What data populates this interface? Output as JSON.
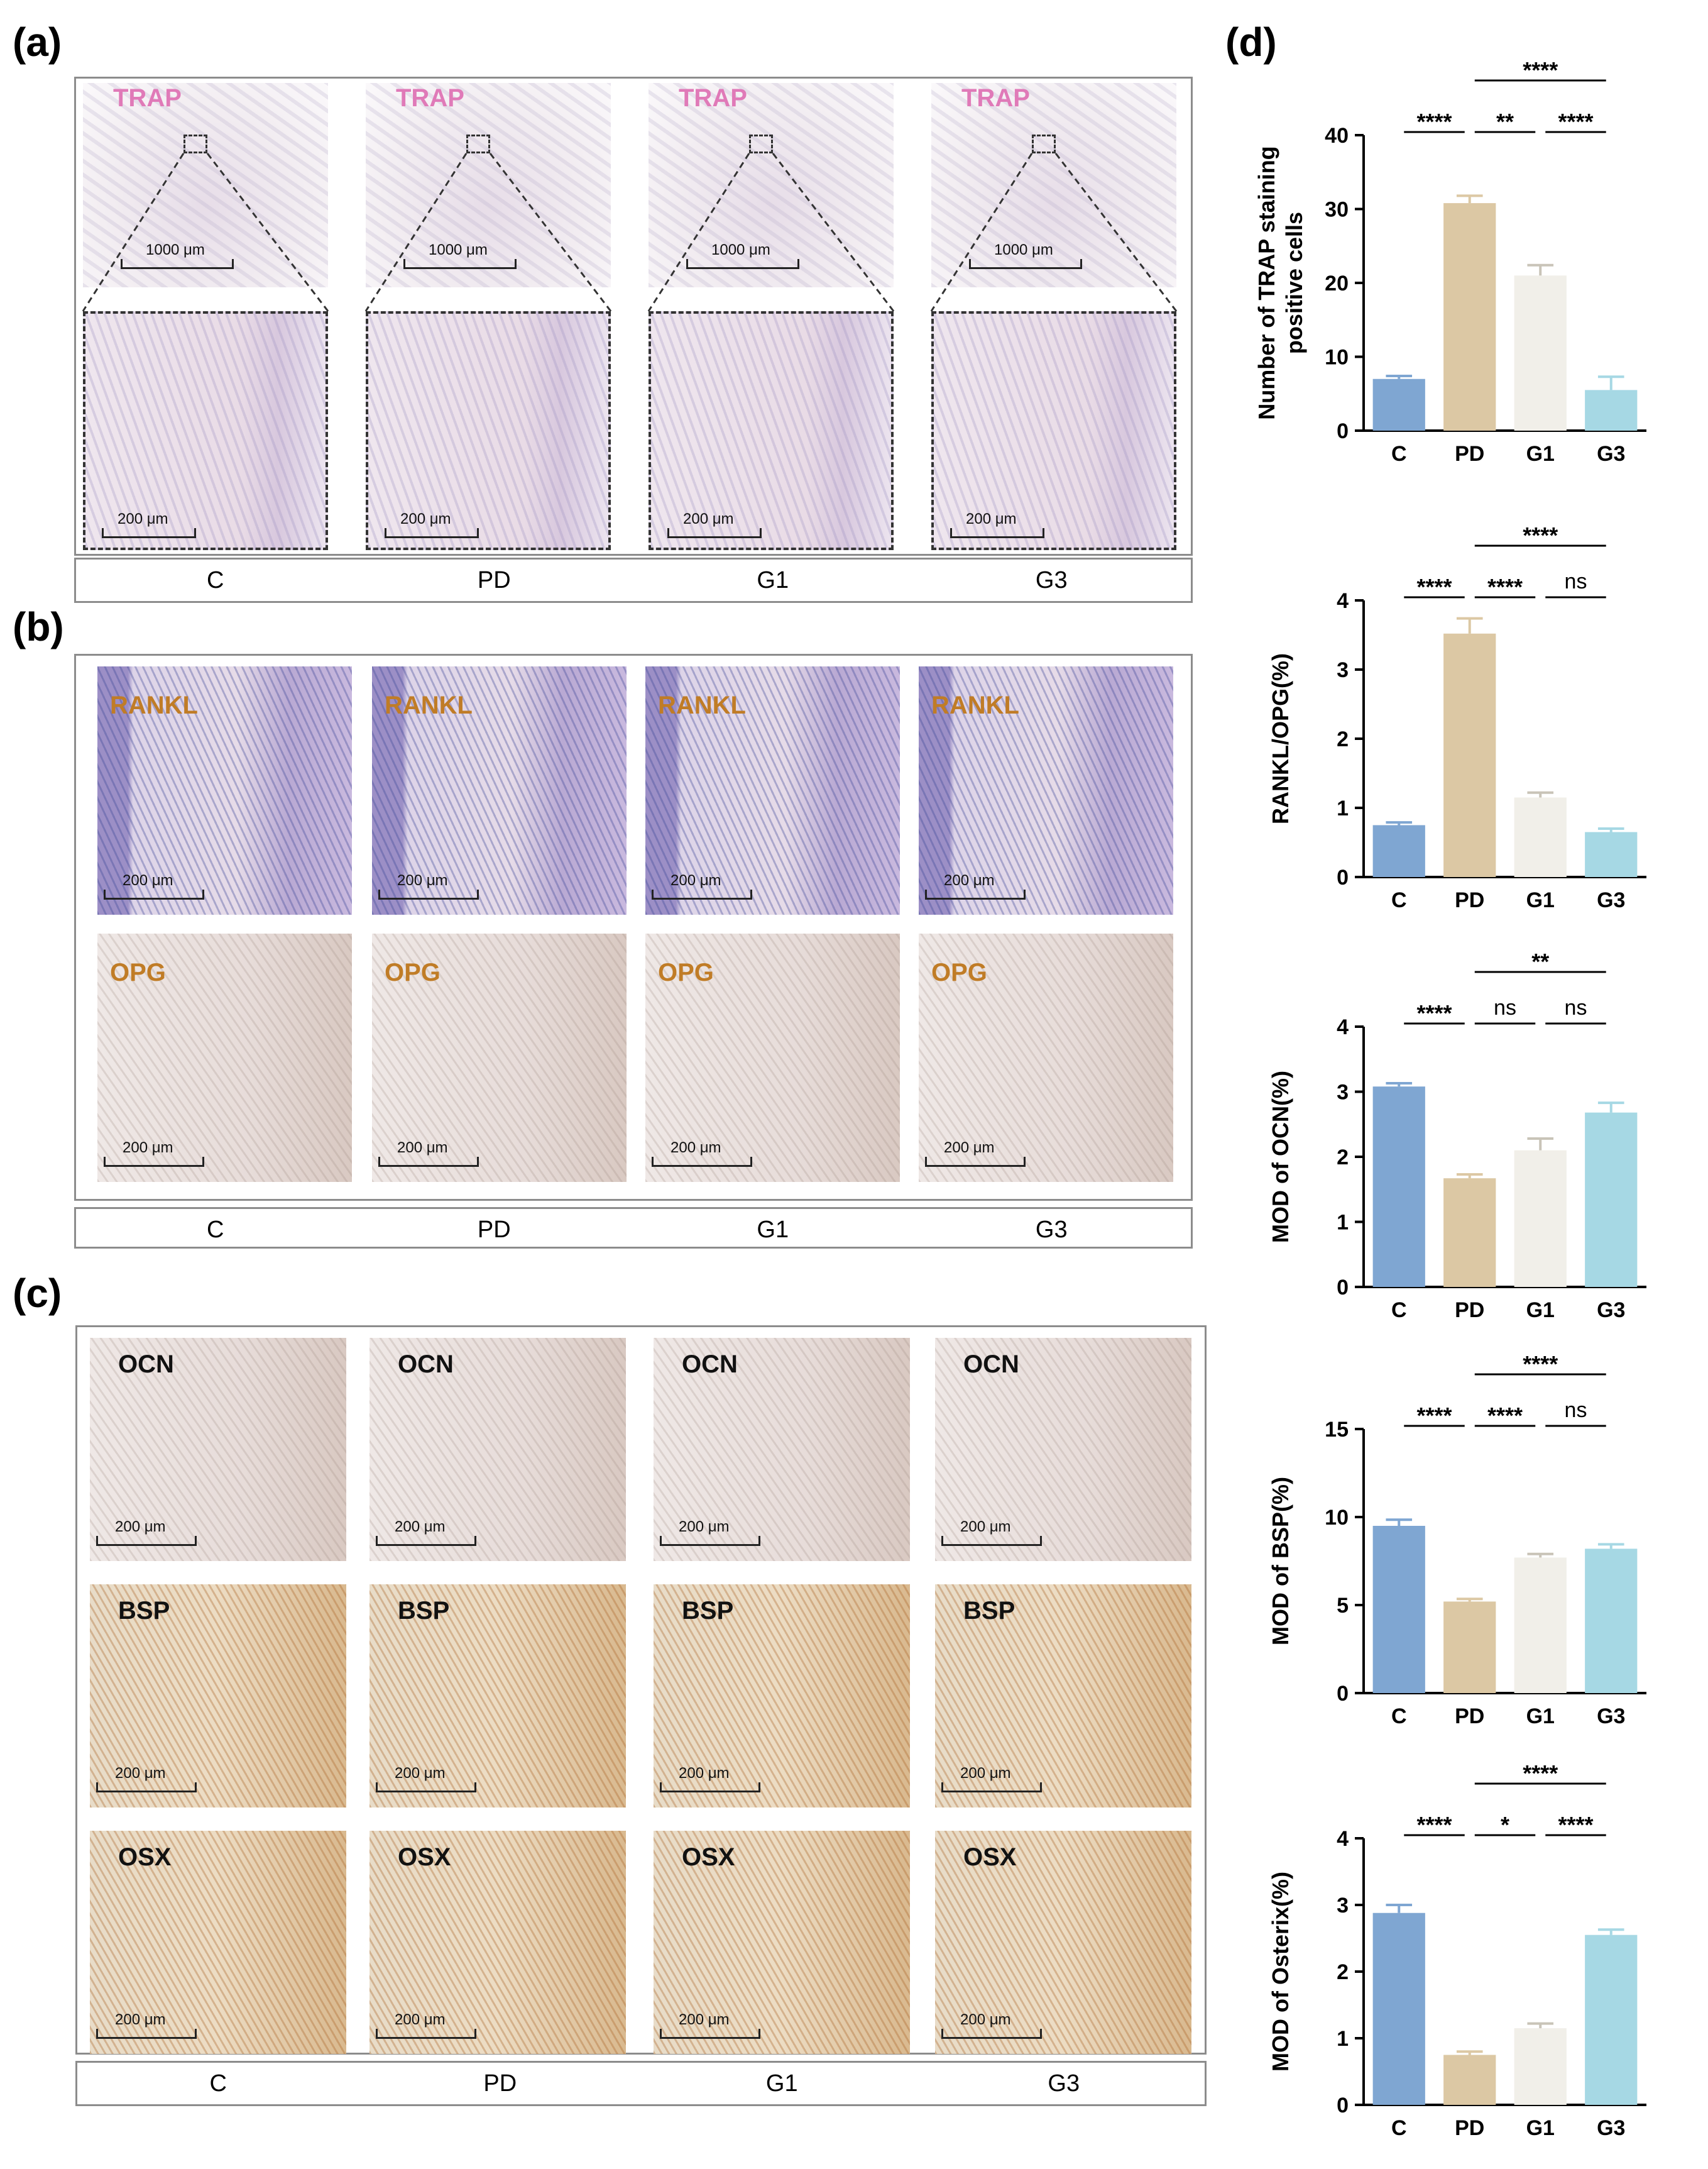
{
  "panels": {
    "a": {
      "letter": "(a)",
      "stain": "TRAP",
      "scale_top": "1000 μm",
      "scale_bottom": "200 μm",
      "groups": [
        "C",
        "PD",
        "G1",
        "G3"
      ]
    },
    "b": {
      "letter": "(b)",
      "stains": [
        "RANKL",
        "OPG"
      ],
      "scale": "200 μm",
      "groups": [
        "C",
        "PD",
        "G1",
        "G3"
      ]
    },
    "c": {
      "letter": "(c)",
      "stains": [
        "OCN",
        "BSP",
        "OSX"
      ],
      "scale": "200 μm",
      "groups": [
        "C",
        "PD",
        "G1",
        "G3"
      ]
    },
    "d": {
      "letter": "(d)"
    }
  },
  "colors": {
    "C": "#7fa6d2",
    "PD": "#dcc8a4",
    "G1": "#f1efe9",
    "G3": "#a6d8e4",
    "trap": "#e07ab8",
    "ihc": "#c07c26"
  },
  "chart_data": [
    {
      "type": "bar",
      "ylabel": "Number of TRAP staining positive cells",
      "ylabel_lines": [
        "Number of TRAP staining",
        "positive cells"
      ],
      "categories": [
        "C",
        "PD",
        "G1",
        "G3"
      ],
      "values": [
        7,
        30.8,
        21,
        5.5
      ],
      "errors": [
        0.4,
        1.0,
        1.4,
        1.8
      ],
      "ylim": [
        0,
        40
      ],
      "yticks": [
        0,
        10,
        20,
        30,
        40
      ],
      "sig": [
        {
          "from": 0,
          "to": 1,
          "label": "****",
          "level": 0
        },
        {
          "from": 1,
          "to": 2,
          "label": "**",
          "level": 0
        },
        {
          "from": 2,
          "to": 3,
          "label": "****",
          "level": 0
        },
        {
          "from": 1,
          "to": 3,
          "label": "****",
          "level": 1
        }
      ]
    },
    {
      "type": "bar",
      "ylabel": "RANKL/OPG(%)",
      "ylabel_lines": [
        "RANKL/OPG(%)"
      ],
      "categories": [
        "C",
        "PD",
        "G1",
        "G3"
      ],
      "values": [
        0.75,
        3.52,
        1.15,
        0.65
      ],
      "errors": [
        0.04,
        0.22,
        0.07,
        0.05
      ],
      "ylim": [
        0,
        4
      ],
      "yticks": [
        0,
        1,
        2,
        3,
        4
      ],
      "sig": [
        {
          "from": 0,
          "to": 1,
          "label": "****",
          "level": 0
        },
        {
          "from": 1,
          "to": 2,
          "label": "****",
          "level": 0
        },
        {
          "from": 2,
          "to": 3,
          "label": "ns",
          "level": 0
        },
        {
          "from": 1,
          "to": 3,
          "label": "****",
          "level": 1
        }
      ]
    },
    {
      "type": "bar",
      "ylabel": "MOD of OCN(%)",
      "ylabel_lines": [
        "MOD of OCN(%)"
      ],
      "categories": [
        "C",
        "PD",
        "G1",
        "G3"
      ],
      "values": [
        3.08,
        1.67,
        2.1,
        2.68
      ],
      "errors": [
        0.05,
        0.06,
        0.18,
        0.15
      ],
      "ylim": [
        0,
        4
      ],
      "yticks": [
        0,
        1,
        2,
        3,
        4
      ],
      "sig": [
        {
          "from": 0,
          "to": 1,
          "label": "****",
          "level": 0
        },
        {
          "from": 1,
          "to": 2,
          "label": "ns",
          "level": 0
        },
        {
          "from": 2,
          "to": 3,
          "label": "ns",
          "level": 0
        },
        {
          "from": 1,
          "to": 3,
          "label": "**",
          "level": 1
        }
      ]
    },
    {
      "type": "bar",
      "ylabel": "MOD of BSP(%)",
      "ylabel_lines": [
        "MOD of BSP(%)"
      ],
      "categories": [
        "C",
        "PD",
        "G1",
        "G3"
      ],
      "values": [
        9.5,
        5.2,
        7.7,
        8.2
      ],
      "errors": [
        0.35,
        0.15,
        0.2,
        0.25
      ],
      "ylim": [
        0,
        15
      ],
      "yticks": [
        0,
        5,
        10,
        15
      ],
      "sig": [
        {
          "from": 0,
          "to": 1,
          "label": "****",
          "level": 0
        },
        {
          "from": 1,
          "to": 2,
          "label": "****",
          "level": 0
        },
        {
          "from": 2,
          "to": 3,
          "label": "ns",
          "level": 0
        },
        {
          "from": 1,
          "to": 3,
          "label": "****",
          "level": 1
        }
      ]
    },
    {
      "type": "bar",
      "ylabel": "MOD of Osterix(%)",
      "ylabel_lines": [
        "MOD of Osterix(%)"
      ],
      "categories": [
        "C",
        "PD",
        "G1",
        "G3"
      ],
      "values": [
        2.88,
        0.75,
        1.15,
        2.55
      ],
      "errors": [
        0.12,
        0.05,
        0.07,
        0.08
      ],
      "ylim": [
        0,
        4
      ],
      "yticks": [
        0,
        1,
        2,
        3,
        4
      ],
      "sig": [
        {
          "from": 0,
          "to": 1,
          "label": "****",
          "level": 0
        },
        {
          "from": 1,
          "to": 2,
          "label": "*",
          "level": 0
        },
        {
          "from": 2,
          "to": 3,
          "label": "****",
          "level": 0
        },
        {
          "from": 1,
          "to": 3,
          "label": "****",
          "level": 1
        }
      ]
    }
  ]
}
